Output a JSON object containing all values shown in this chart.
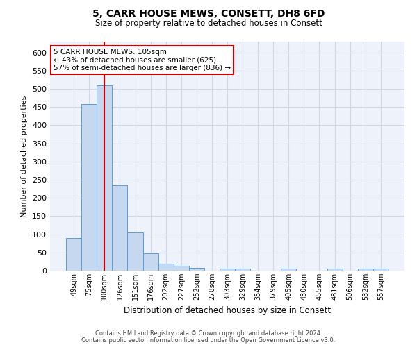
{
  "title": "5, CARR HOUSE MEWS, CONSETT, DH8 6FD",
  "subtitle": "Size of property relative to detached houses in Consett",
  "xlabel": "Distribution of detached houses by size in Consett",
  "ylabel": "Number of detached properties",
  "footer_line1": "Contains HM Land Registry data © Crown copyright and database right 2024.",
  "footer_line2": "Contains public sector information licensed under the Open Government Licence v3.0.",
  "bar_labels": [
    "49sqm",
    "75sqm",
    "100sqm",
    "126sqm",
    "151sqm",
    "176sqm",
    "202sqm",
    "227sqm",
    "252sqm",
    "278sqm",
    "303sqm",
    "329sqm",
    "354sqm",
    "379sqm",
    "405sqm",
    "430sqm",
    "455sqm",
    "481sqm",
    "506sqm",
    "532sqm",
    "557sqm"
  ],
  "bar_values": [
    89,
    458,
    510,
    235,
    105,
    47,
    20,
    13,
    8,
    0,
    5,
    5,
    0,
    0,
    5,
    0,
    0,
    5,
    0,
    5,
    5
  ],
  "bar_color": "#c5d8f0",
  "bar_edge_color": "#5b9bd5",
  "grid_color": "#d0d8e8",
  "background_color": "#eef3fb",
  "vline_x": 2,
  "vline_color": "#cc0000",
  "annotation_line1": "5 CARR HOUSE MEWS: 105sqm",
  "annotation_line2": "← 43% of detached houses are smaller (625)",
  "annotation_line3": "57% of semi-detached houses are larger (836) →",
  "annotation_box_color": "white",
  "annotation_box_edge": "#cc0000",
  "ylim": [
    0,
    630
  ],
  "yticks": [
    0,
    50,
    100,
    150,
    200,
    250,
    300,
    350,
    400,
    450,
    500,
    550,
    600
  ]
}
